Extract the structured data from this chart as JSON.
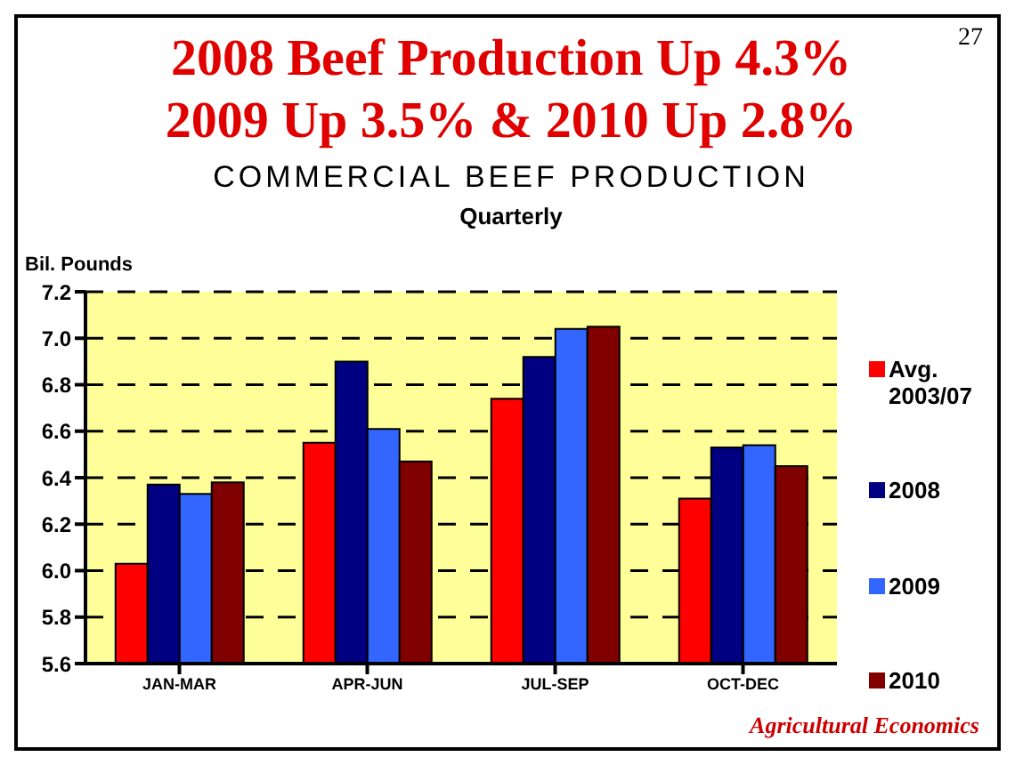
{
  "chart_data": {
    "type": "bar",
    "title": "2008 Beef Production Up 4.3%\n2009 Up 3.5% & 2010 Up 2.8%",
    "subtitle": "COMMERCIAL BEEF PRODUCTION\nQuarterly",
    "ylabel": "Bil. Pounds",
    "categories": [
      "JAN-MAR",
      "APR-JUN",
      "JUL-SEP",
      "OCT-DEC"
    ],
    "series": [
      {
        "name": "Avg.\n2003/07",
        "color": "#ff0000",
        "values": [
          6.03,
          6.55,
          6.74,
          6.31
        ]
      },
      {
        "name": "2008",
        "color": "#000080",
        "values": [
          6.37,
          6.9,
          6.92,
          6.53
        ]
      },
      {
        "name": "2009",
        "color": "#3366ff",
        "values": [
          6.33,
          6.61,
          7.04,
          6.54
        ]
      },
      {
        "name": "2010",
        "color": "#800000",
        "values": [
          6.38,
          6.47,
          7.05,
          6.45
        ]
      }
    ],
    "ylim": [
      5.6,
      7.2
    ],
    "yticks": [
      5.6,
      5.8,
      {
        "value": 6,
        "label": "6.0"
      },
      6.2,
      6.4,
      6.6,
      6.8,
      {
        "value": 7,
        "label": "7.0"
      },
      7.2
    ],
    "grid": "y",
    "legend": "right",
    "annotations": [
      "27",
      "Agricultural Economics"
    ]
  }
}
